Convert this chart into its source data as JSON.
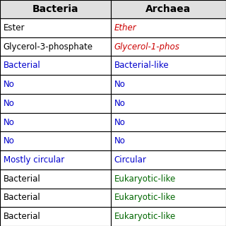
{
  "headers": [
    "Bacteria",
    "Archaea"
  ],
  "header_color": "#000000",
  "rows": [
    {
      "bacteria_text": "Ester",
      "bacteria_color": "#000000",
      "bacteria_italic": false,
      "archaea_text": "Ether",
      "archaea_color": "#cc0000",
      "archaea_italic": true
    },
    {
      "bacteria_text": "Glycerol-3-phosphate",
      "bacteria_color": "#000000",
      "bacteria_italic": false,
      "archaea_text": "Glycerol-1-phos",
      "archaea_color": "#cc0000",
      "archaea_italic": true
    },
    {
      "bacteria_text": "Bacterial",
      "bacteria_color": "#0000cc",
      "bacteria_italic": false,
      "archaea_text": "Bacterial-like",
      "archaea_color": "#0000cc",
      "archaea_italic": false
    },
    {
      "bacteria_text": "No",
      "bacteria_color": "#0000cc",
      "bacteria_italic": false,
      "archaea_text": "No",
      "archaea_color": "#0000cc",
      "archaea_italic": false
    },
    {
      "bacteria_text": "No",
      "bacteria_color": "#0000cc",
      "bacteria_italic": false,
      "archaea_text": "No",
      "archaea_color": "#0000cc",
      "archaea_italic": false
    },
    {
      "bacteria_text": "No",
      "bacteria_color": "#0000cc",
      "bacteria_italic": false,
      "archaea_text": "No",
      "archaea_color": "#0000cc",
      "archaea_italic": false
    },
    {
      "bacteria_text": "No",
      "bacteria_color": "#0000cc",
      "bacteria_italic": false,
      "archaea_text": "No",
      "archaea_color": "#0000cc",
      "archaea_italic": false
    },
    {
      "bacteria_text": "Mostly circular",
      "bacteria_color": "#0000cc",
      "bacteria_italic": false,
      "archaea_text": "Circular",
      "archaea_color": "#0000cc",
      "archaea_italic": false
    },
    {
      "bacteria_text": "Bacterial",
      "bacteria_color": "#000000",
      "bacteria_italic": false,
      "archaea_text": "Eukaryotic-like",
      "archaea_color": "#006600",
      "archaea_italic": false
    },
    {
      "bacteria_text": "Bacterial",
      "bacteria_color": "#000000",
      "bacteria_italic": false,
      "archaea_text": "Eukaryotic-like",
      "archaea_color": "#006600",
      "archaea_italic": false
    },
    {
      "bacteria_text": "Bacterial",
      "bacteria_color": "#000000",
      "bacteria_italic": false,
      "archaea_text": "Eukaryotic-like",
      "archaea_color": "#006600",
      "archaea_italic": false
    }
  ],
  "col_split": 0.49,
  "bg_color": "#ffffff",
  "grid_color": "#000000",
  "header_bg": "#e0e0e0",
  "font_size": 8.5,
  "header_font_size": 10.0
}
